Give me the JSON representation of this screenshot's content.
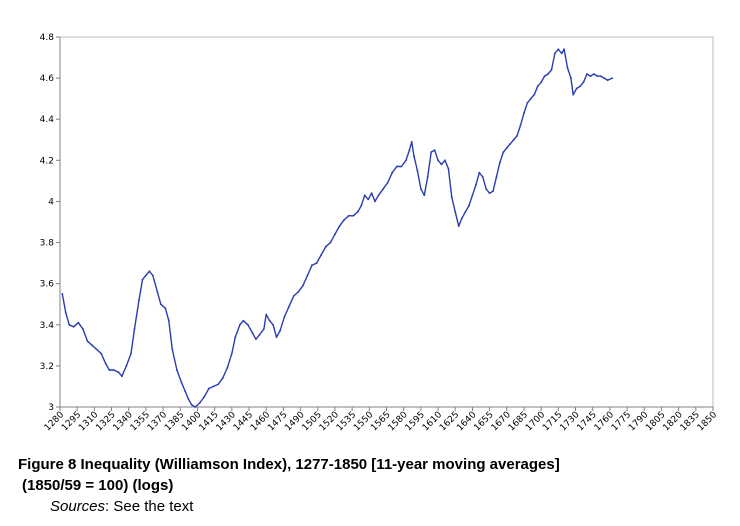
{
  "chart_data": {
    "type": "line",
    "title": "",
    "xlabel": "",
    "ylabel": "",
    "xlim": [
      1280,
      1850
    ],
    "ylim": [
      3,
      4.8
    ],
    "yticks": [
      3,
      3.2,
      3.4,
      3.6,
      3.8,
      4,
      4.2,
      4.4,
      4.6,
      4.8
    ],
    "ytick_labels": [
      "3",
      "3.2",
      "3.4",
      "3.6",
      "3.8",
      "4",
      "4.2",
      "4.4",
      "4.6",
      "4.8"
    ],
    "xtick_labels": [
      "1280",
      "1295",
      "1310",
      "1325",
      "1340",
      "1355",
      "1370",
      "1385",
      "1400",
      "1415",
      "1430",
      "1445",
      "1460",
      "1475",
      "1490",
      "1505",
      "1520",
      "1535",
      "1550",
      "1565",
      "1580",
      "1595",
      "1610",
      "1625",
      "1640",
      "1655",
      "1670",
      "1685",
      "1700",
      "1715",
      "1730",
      "1745",
      "1760",
      "1775",
      "1790",
      "1805",
      "1820",
      "1835",
      "1850"
    ],
    "grid": "none",
    "legend": "none",
    "line_color": "#2a3db0",
    "series": [
      {
        "points": [
          [
            1282,
            3.55
          ],
          [
            1285,
            3.46
          ],
          [
            1288,
            3.4
          ],
          [
            1292,
            3.39
          ],
          [
            1296,
            3.41
          ],
          [
            1300,
            3.38
          ],
          [
            1304,
            3.32
          ],
          [
            1308,
            3.3
          ],
          [
            1312,
            3.28
          ],
          [
            1316,
            3.26
          ],
          [
            1320,
            3.21
          ],
          [
            1323,
            3.18
          ],
          [
            1327,
            3.18
          ],
          [
            1331,
            3.17
          ],
          [
            1334,
            3.15
          ],
          [
            1338,
            3.2
          ],
          [
            1342,
            3.26
          ],
          [
            1345,
            3.38
          ],
          [
            1349,
            3.52
          ],
          [
            1352,
            3.62
          ],
          [
            1355,
            3.64
          ],
          [
            1358,
            3.66
          ],
          [
            1361,
            3.64
          ],
          [
            1365,
            3.56
          ],
          [
            1368,
            3.5
          ],
          [
            1372,
            3.48
          ],
          [
            1375,
            3.42
          ],
          [
            1378,
            3.28
          ],
          [
            1382,
            3.18
          ],
          [
            1386,
            3.12
          ],
          [
            1389,
            3.08
          ],
          [
            1392,
            3.04
          ],
          [
            1395,
            3.01
          ],
          [
            1398,
            3.0
          ],
          [
            1402,
            3.02
          ],
          [
            1406,
            3.05
          ],
          [
            1410,
            3.09
          ],
          [
            1414,
            3.1
          ],
          [
            1418,
            3.11
          ],
          [
            1422,
            3.14
          ],
          [
            1426,
            3.19
          ],
          [
            1430,
            3.26
          ],
          [
            1433,
            3.34
          ],
          [
            1437,
            3.4
          ],
          [
            1440,
            3.42
          ],
          [
            1444,
            3.4
          ],
          [
            1448,
            3.36
          ],
          [
            1451,
            3.33
          ],
          [
            1454,
            3.35
          ],
          [
            1458,
            3.38
          ],
          [
            1460,
            3.45
          ],
          [
            1463,
            3.42
          ],
          [
            1466,
            3.4
          ],
          [
            1469,
            3.34
          ],
          [
            1472,
            3.37
          ],
          [
            1476,
            3.44
          ],
          [
            1480,
            3.49
          ],
          [
            1484,
            3.54
          ],
          [
            1488,
            3.56
          ],
          [
            1492,
            3.59
          ],
          [
            1496,
            3.64
          ],
          [
            1500,
            3.69
          ],
          [
            1504,
            3.7
          ],
          [
            1508,
            3.74
          ],
          [
            1512,
            3.78
          ],
          [
            1516,
            3.8
          ],
          [
            1520,
            3.84
          ],
          [
            1524,
            3.88
          ],
          [
            1528,
            3.91
          ],
          [
            1532,
            3.93
          ],
          [
            1536,
            3.93
          ],
          [
            1540,
            3.95
          ],
          [
            1543,
            3.98
          ],
          [
            1546,
            4.03
          ],
          [
            1549,
            4.01
          ],
          [
            1552,
            4.04
          ],
          [
            1555,
            4.0
          ],
          [
            1558,
            4.03
          ],
          [
            1562,
            4.06
          ],
          [
            1566,
            4.09
          ],
          [
            1570,
            4.14
          ],
          [
            1574,
            4.17
          ],
          [
            1578,
            4.17
          ],
          [
            1582,
            4.2
          ],
          [
            1585,
            4.25
          ],
          [
            1587,
            4.29
          ],
          [
            1589,
            4.22
          ],
          [
            1592,
            4.15
          ],
          [
            1595,
            4.06
          ],
          [
            1598,
            4.03
          ],
          [
            1601,
            4.12
          ],
          [
            1604,
            4.24
          ],
          [
            1607,
            4.25
          ],
          [
            1610,
            4.2
          ],
          [
            1613,
            4.18
          ],
          [
            1616,
            4.2
          ],
          [
            1619,
            4.16
          ],
          [
            1622,
            4.02
          ],
          [
            1625,
            3.95
          ],
          [
            1628,
            3.88
          ],
          [
            1631,
            3.92
          ],
          [
            1634,
            3.95
          ],
          [
            1637,
            3.98
          ],
          [
            1640,
            4.03
          ],
          [
            1643,
            4.08
          ],
          [
            1646,
            4.14
          ],
          [
            1649,
            4.12
          ],
          [
            1652,
            4.06
          ],
          [
            1655,
            4.04
          ],
          [
            1658,
            4.05
          ],
          [
            1661,
            4.12
          ],
          [
            1664,
            4.19
          ],
          [
            1667,
            4.24
          ],
          [
            1670,
            4.26
          ],
          [
            1673,
            4.28
          ],
          [
            1676,
            4.3
          ],
          [
            1679,
            4.32
          ],
          [
            1682,
            4.37
          ],
          [
            1685,
            4.43
          ],
          [
            1688,
            4.48
          ],
          [
            1691,
            4.5
          ],
          [
            1694,
            4.52
          ],
          [
            1697,
            4.56
          ],
          [
            1700,
            4.58
          ],
          [
            1703,
            4.61
          ],
          [
            1706,
            4.62
          ],
          [
            1709,
            4.64
          ],
          [
            1712,
            4.72
          ],
          [
            1715,
            4.74
          ],
          [
            1718,
            4.72
          ],
          [
            1720,
            4.74
          ],
          [
            1723,
            4.65
          ],
          [
            1726,
            4.6
          ],
          [
            1728,
            4.52
          ],
          [
            1731,
            4.55
          ],
          [
            1734,
            4.56
          ],
          [
            1737,
            4.58
          ],
          [
            1740,
            4.62
          ],
          [
            1743,
            4.61
          ],
          [
            1746,
            4.62
          ],
          [
            1749,
            4.61
          ],
          [
            1752,
            4.61
          ],
          [
            1755,
            4.6
          ],
          [
            1758,
            4.59
          ],
          [
            1762,
            4.6
          ]
        ]
      }
    ]
  },
  "caption": {
    "line1": "Figure 8 Inequality (Williamson Index), 1277-1850 [11-year moving averages]",
    "line2": "(1850/59 = 100) (logs)",
    "sources_label": "Sources",
    "sources_text": ": See the text"
  }
}
